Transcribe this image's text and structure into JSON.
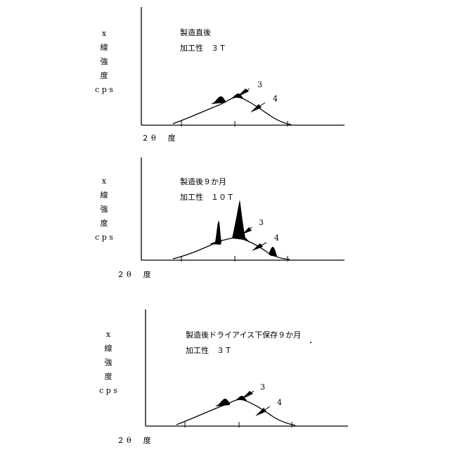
{
  "panels": [
    {
      "condition": "製造直後",
      "workability": "加工性　３Ｔ",
      "y_axis": [
        "x",
        "線",
        "強",
        "度",
        "c p s"
      ],
      "x_axis": "２θ　度",
      "label_3": "3",
      "label_4": "4"
    },
    {
      "condition": "製造後９か月",
      "workability": "加工性　１０Ｔ",
      "y_axis": [
        "x",
        "線",
        "強",
        "度",
        "c p s"
      ],
      "x_axis": "２θ　度",
      "label_3": "3",
      "label_4": "4"
    },
    {
      "condition": "製造後ドライアイス下保存９か月",
      "workability": "加工性　３Ｔ",
      "y_axis": [
        "x",
        "線",
        "強",
        "度",
        "c p s"
      ],
      "x_axis": "２θ　度",
      "label_3": "3",
      "label_4": "4"
    }
  ]
}
